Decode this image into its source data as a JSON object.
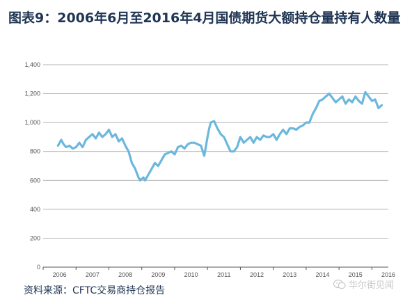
{
  "title": "图表9：2006年6月至2016年4月国债期货大额持仓量持有人数量",
  "source": "资料来源：CFTC交易商持仓报告",
  "watermark": "华尔街见闻",
  "chart_data": {
    "type": "line",
    "title": "图表9：2006年6月至2016年4月国债期货大额持仓量持有人数量",
    "xlabel": "",
    "ylabel": "",
    "x_tick_labels": [
      "2006",
      "2007",
      "2008",
      "2009",
      "2010",
      "2011",
      "2012",
      "2013",
      "2014",
      "2015",
      "2016"
    ],
    "y_tick_labels": [
      "0",
      "200",
      "400",
      "600",
      "800",
      "1,000",
      "1,200",
      "1,400"
    ],
    "xlim": [
      2006.0,
      2016.5
    ],
    "ylim": [
      0,
      1400
    ],
    "grid": "horizontal",
    "line_color": "#6cb7dd",
    "series": [
      {
        "x": [
          2006.45,
          2006.55,
          2006.62,
          2006.7,
          2006.8,
          2006.9,
          2007.0,
          2007.1,
          2007.2,
          2007.3,
          2007.4,
          2007.5,
          2007.6,
          2007.7,
          2007.8,
          2007.9,
          2008.0,
          2008.1,
          2008.2,
          2008.3,
          2008.4,
          2008.5,
          2008.6,
          2008.7,
          2008.8,
          2008.9,
          2008.95,
          2009.0,
          2009.05,
          2009.1,
          2009.2,
          2009.3,
          2009.4,
          2009.5,
          2009.6,
          2009.7,
          2009.8,
          2009.9,
          2010.0,
          2010.1,
          2010.2,
          2010.3,
          2010.4,
          2010.5,
          2010.6,
          2010.7,
          2010.8,
          2010.9,
          2011.0,
          2011.05,
          2011.1,
          2011.2,
          2011.3,
          2011.4,
          2011.5,
          2011.6,
          2011.7,
          2011.8,
          2011.9,
          2012.0,
          2012.1,
          2012.2,
          2012.3,
          2012.4,
          2012.5,
          2012.6,
          2012.7,
          2012.8,
          2012.9,
          2013.0,
          2013.1,
          2013.2,
          2013.3,
          2013.4,
          2013.5,
          2013.6,
          2013.7,
          2013.8,
          2013.9,
          2014.0,
          2014.1,
          2014.2,
          2014.3,
          2014.4,
          2014.5,
          2014.6,
          2014.7,
          2014.8,
          2014.9,
          2015.0,
          2015.1,
          2015.2,
          2015.3,
          2015.4,
          2015.5,
          2015.6,
          2015.7,
          2015.8,
          2015.9,
          2016.0,
          2016.1,
          2016.2,
          2016.3
        ],
        "values": [
          840,
          880,
          850,
          830,
          840,
          820,
          830,
          860,
          830,
          880,
          900,
          920,
          890,
          930,
          900,
          920,
          950,
          900,
          920,
          870,
          890,
          840,
          800,
          720,
          680,
          620,
          600,
          610,
          620,
          600,
          640,
          680,
          720,
          700,
          740,
          780,
          790,
          800,
          780,
          830,
          840,
          820,
          850,
          860,
          860,
          850,
          840,
          770,
          900,
          960,
          1000,
          1010,
          960,
          920,
          900,
          850,
          800,
          800,
          830,
          900,
          860,
          880,
          900,
          860,
          900,
          880,
          910,
          900,
          900,
          920,
          880,
          920,
          950,
          920,
          960,
          960,
          950,
          970,
          980,
          1000,
          1000,
          1060,
          1100,
          1150,
          1160,
          1180,
          1200,
          1170,
          1140,
          1160,
          1180,
          1130,
          1160,
          1140,
          1180,
          1150,
          1130,
          1210,
          1180,
          1150,
          1160,
          1100,
          1120
        ]
      }
    ]
  }
}
